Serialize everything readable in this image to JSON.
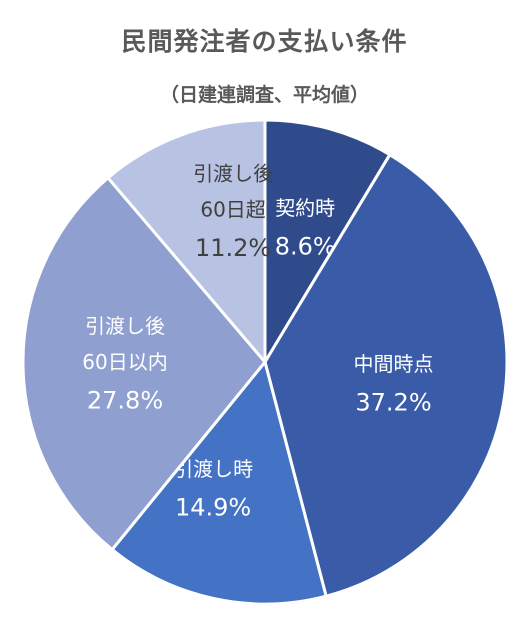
{
  "header": {
    "title": "民間発注者の支払い条件",
    "subtitle": "（日建連調査、平均値）"
  },
  "chart_data": {
    "type": "pie",
    "start_angle_deg": 0,
    "direction": "clockwise",
    "slices": [
      {
        "name": "契約時",
        "label_lines": [
          "契約時"
        ],
        "value": 8.6,
        "value_text": "8.6%",
        "color": "#2f4b8c",
        "text_dark": false
      },
      {
        "name": "中間時点",
        "label_lines": [
          "中間時点"
        ],
        "value": 37.2,
        "value_text": "37.2%",
        "color": "#3a5ca8",
        "text_dark": false
      },
      {
        "name": "引渡し時",
        "label_lines": [
          "引渡し時"
        ],
        "value": 14.9,
        "value_text": "14.9%",
        "color": "#4472c4",
        "text_dark": false
      },
      {
        "name": "引渡し後60日以内",
        "label_lines": [
          "引渡し後",
          "60日以内"
        ],
        "value": 27.8,
        "value_text": "27.8%",
        "color": "#8e9fd0",
        "text_dark": false
      },
      {
        "name": "引渡し後60日超",
        "label_lines": [
          "引渡し後",
          "60日超"
        ],
        "value": 11.2,
        "value_text": "11.2%",
        "color": "#b8c2e2",
        "text_dark": true
      }
    ]
  }
}
